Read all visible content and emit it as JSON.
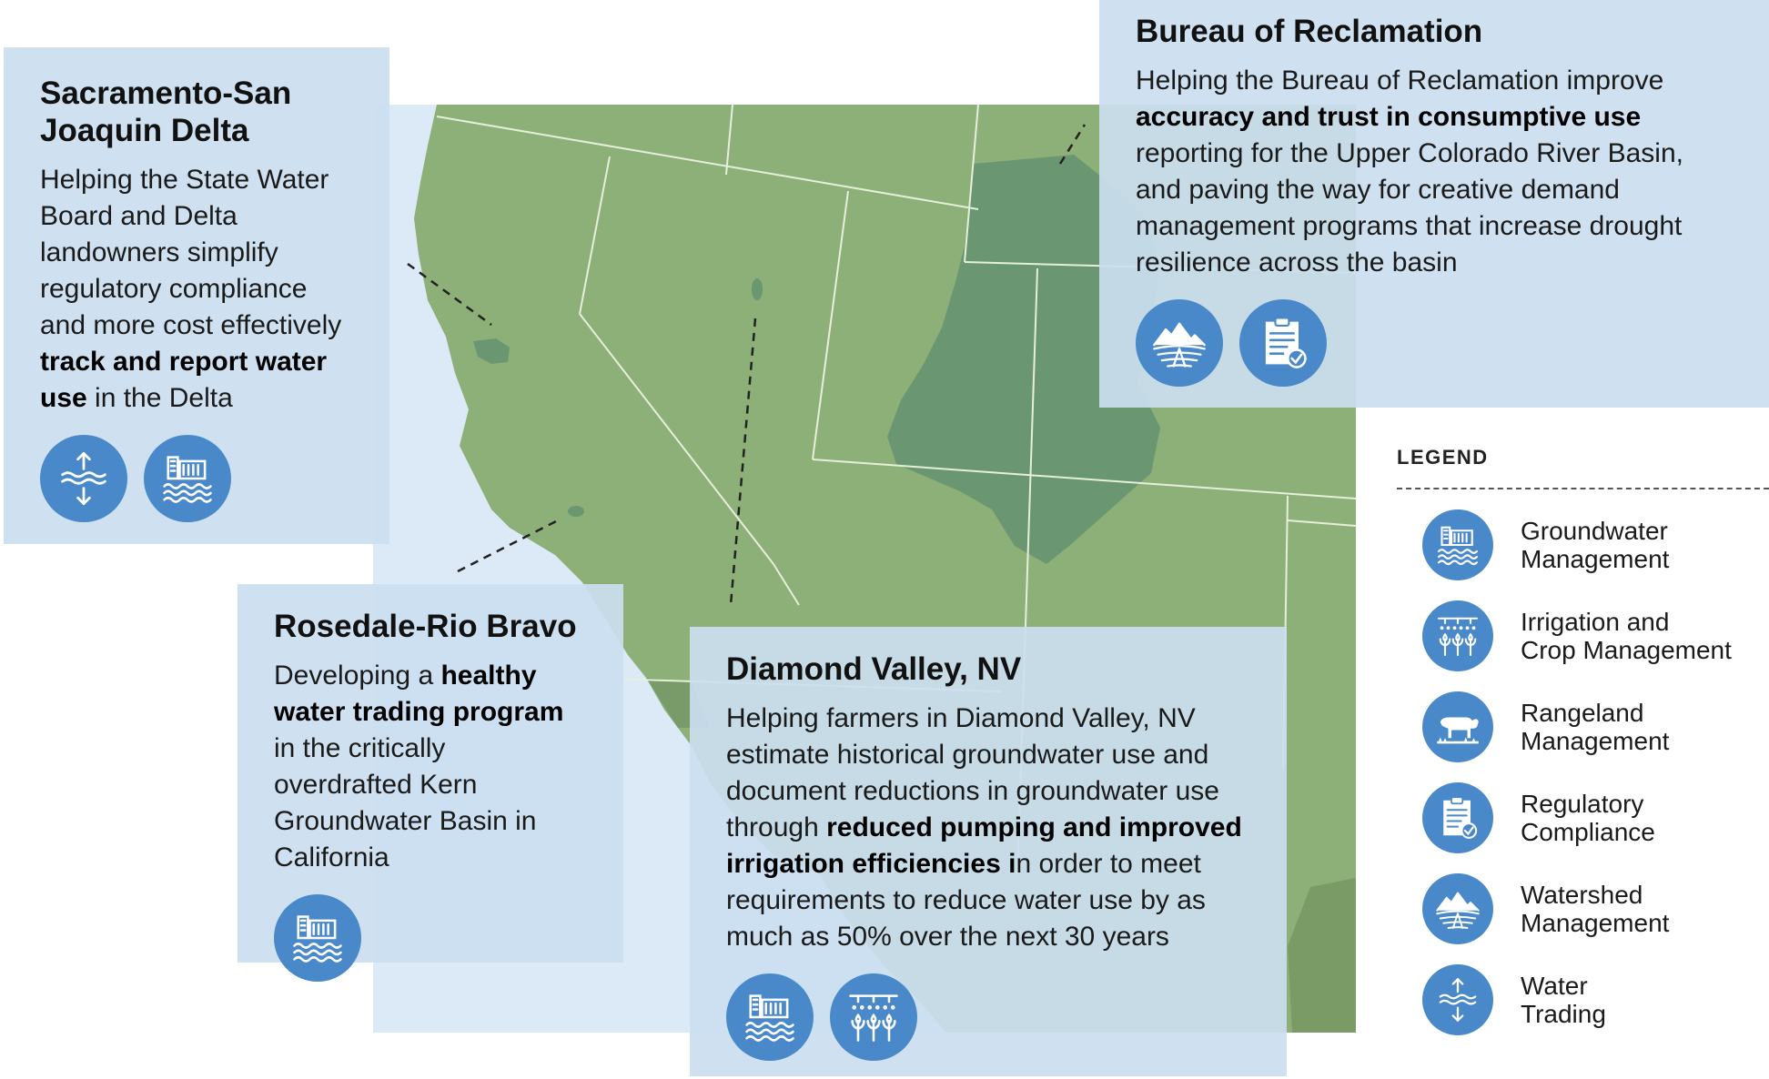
{
  "colors": {
    "ocean": "#dce9f6",
    "land": "#8daf78",
    "basin": "#6a9772",
    "panel": "#cbdef0",
    "icon": "#4a89c9"
  },
  "panels": {
    "delta": {
      "title": "Sacramento-San Joaquin Delta",
      "body_1": "Helping the State Water Board and Delta landowners simplify regulatory compliance and more cost effectively ",
      "body_bold": "track and report water use",
      "body_2": " in the Delta",
      "icons": [
        "water-trading-icon",
        "groundwater-management-icon"
      ]
    },
    "rosedale": {
      "title": "Rosedale-Rio Bravo",
      "body_1": "Developing a ",
      "body_bold": "healthy water trading program",
      "body_2": " in the critically overdrafted Kern Groundwater Basin in California",
      "icons": [
        "groundwater-management-icon"
      ]
    },
    "diamond": {
      "title": "Diamond Valley, NV",
      "body_1": "Helping farmers in Diamond Valley, NV estimate historical groundwater use and document reductions in groundwater use through ",
      "body_bold": "reduced pumping and improved irrigation efficiencies i",
      "body_2": "n order to meet requirements to reduce water use by as much as 50% over the next 30 years",
      "icons": [
        "groundwater-management-icon",
        "irrigation-crop-icon"
      ]
    },
    "bureau": {
      "title": "Bureau of Reclamation",
      "body_1": "Helping the Bureau of Reclamation improve ",
      "body_bold": "accuracy and trust in consumptive use",
      "body_2": " reporting for the Upper Colorado River Basin, and paving the way for creative demand management programs that increase drought resilience across the basin",
      "icons": [
        "watershed-management-icon",
        "regulatory-compliance-icon"
      ]
    }
  },
  "legend": {
    "title": "LEGEND",
    "items": [
      {
        "icon": "groundwater-management-icon",
        "line1": "Groundwater",
        "line2": "Management"
      },
      {
        "icon": "irrigation-crop-icon",
        "line1": "Irrigation and",
        "line2": "Crop Management"
      },
      {
        "icon": "rangeland-management-icon",
        "line1": "Rangeland",
        "line2": "Management"
      },
      {
        "icon": "regulatory-compliance-icon",
        "line1": "Regulatory",
        "line2": "Compliance"
      },
      {
        "icon": "watershed-management-icon",
        "line1": "Watershed",
        "line2": "Management"
      },
      {
        "icon": "water-trading-icon",
        "line1": "Water",
        "line2": "Trading"
      }
    ]
  }
}
